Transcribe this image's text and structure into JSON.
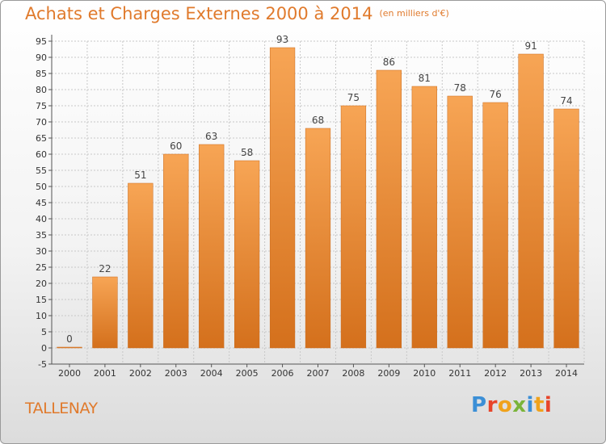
{
  "header": {
    "title": "Achats et Charges Externes 2000 à 2014",
    "subtitle": "(en milliers d'€)"
  },
  "footer": {
    "place": "TALLENAY",
    "logo_letters": [
      "P",
      "r",
      "o",
      "x",
      "i",
      "t",
      "i"
    ]
  },
  "colors": {
    "bar_top": "#f7a555",
    "bar_bottom": "#d4701c",
    "title": "#e07a2c",
    "grid": "#c8c8c8"
  },
  "chart_data": {
    "type": "bar",
    "title": "Achats et Charges Externes 2000 à 2014",
    "subtitle": "(en milliers d'€)",
    "categories": [
      "2000",
      "2001",
      "2002",
      "2003",
      "2004",
      "2005",
      "2006",
      "2007",
      "2008",
      "2009",
      "2010",
      "2011",
      "2012",
      "2013",
      "2014"
    ],
    "values": [
      0,
      22,
      51,
      60,
      63,
      58,
      93,
      68,
      75,
      86,
      81,
      78,
      76,
      91,
      74
    ],
    "ylim": [
      -5,
      95
    ],
    "yticks": [
      -5,
      0,
      5,
      10,
      15,
      20,
      25,
      30,
      35,
      40,
      45,
      50,
      55,
      60,
      65,
      70,
      75,
      80,
      85,
      90,
      95
    ],
    "grid": true,
    "data_labels": true
  }
}
